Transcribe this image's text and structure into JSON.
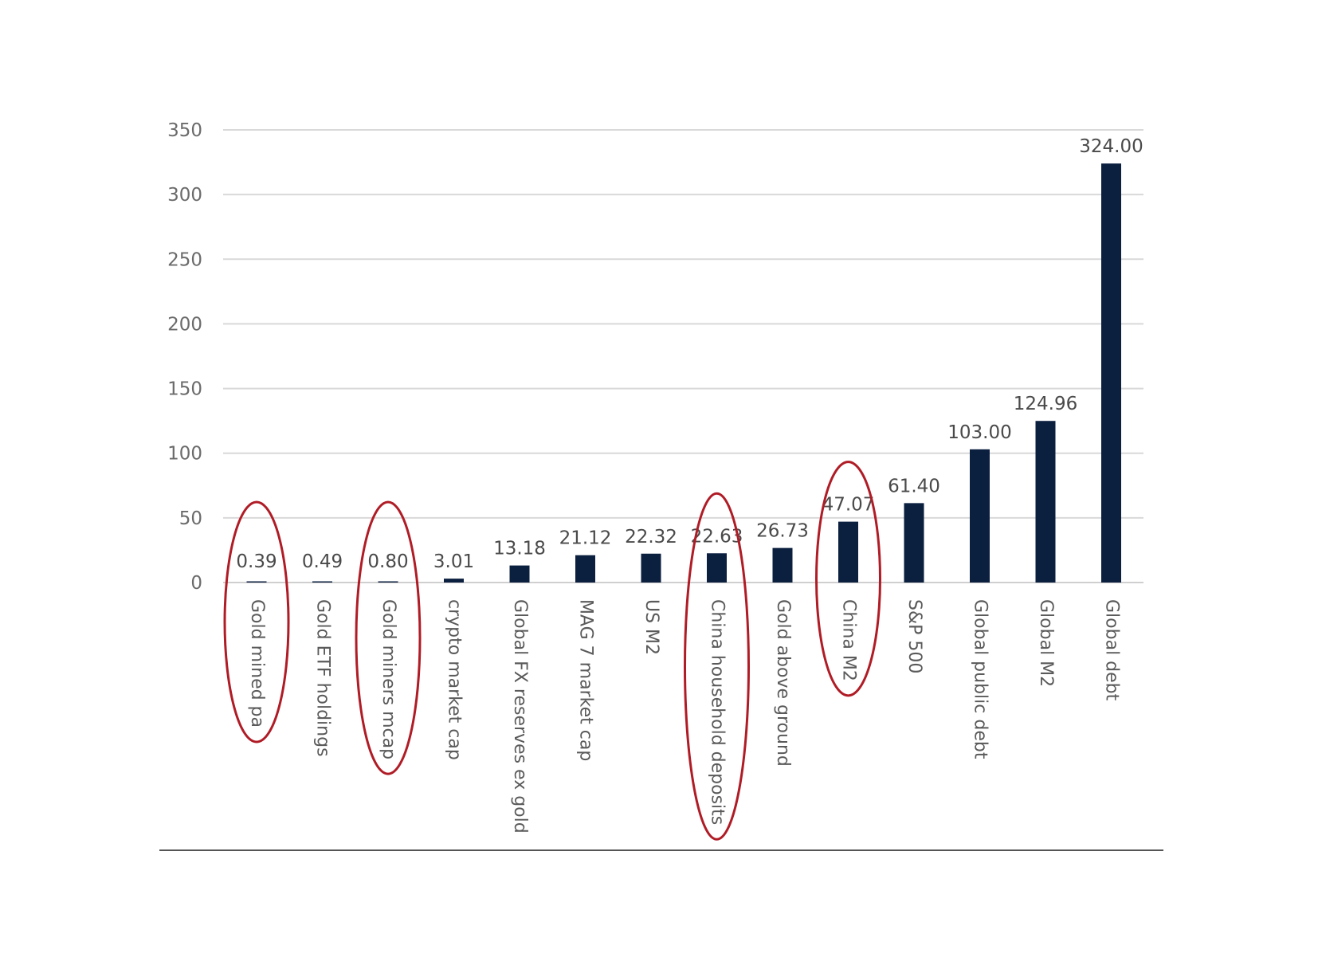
{
  "chart_data": {
    "type": "bar",
    "title": "",
    "xlabel": "",
    "ylabel": "",
    "ylim": [
      0,
      350
    ],
    "yticks": [
      0,
      50,
      100,
      150,
      200,
      250,
      300,
      350
    ],
    "grid": true,
    "categories": [
      "Gold mined pa",
      "Gold ETF holdings",
      "Gold miners mcap",
      "crypto market cap",
      "Global FX reserves ex gold",
      "MAG 7 market cap",
      "US M2",
      "China household deposits",
      "Gold above ground",
      "China M2",
      "S&P 500",
      "Global public debt",
      "Global M2",
      "Global debt"
    ],
    "values": [
      0.39,
      0.49,
      0.8,
      3.01,
      13.18,
      21.12,
      22.32,
      22.63,
      26.73,
      47.07,
      61.4,
      103.0,
      124.96,
      324.0
    ],
    "value_labels": [
      "0.39",
      "0.49",
      "0.80",
      "3.01",
      "13.18",
      "21.12",
      "22.32",
      "22.63",
      "26.73",
      "47.07",
      "61.40",
      "103.00",
      "124.96",
      "324.00"
    ],
    "bar_color": "#0b1f3f",
    "highlight_color": "#b01c26",
    "highlighted_categories": [
      "Gold mined pa",
      "Gold miners mcap",
      "China household deposits",
      "China M2"
    ]
  }
}
